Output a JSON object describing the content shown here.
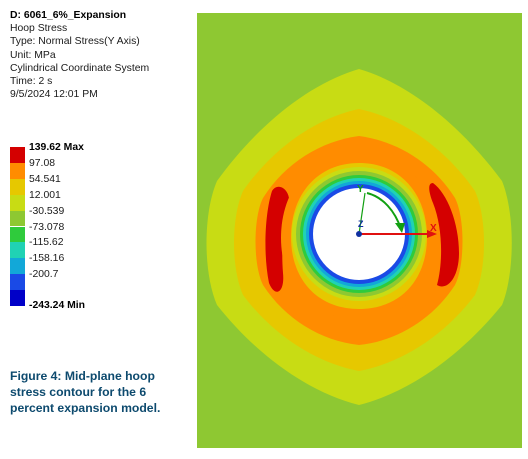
{
  "result_info": {
    "title": "D: 6061_6%_Expansion",
    "lines": [
      "Hoop Stress",
      "Type: Normal Stress(Y Axis)",
      "Unit: MPa",
      "Cylindrical Coordinate System",
      "Time: 2 s",
      "9/5/2024 12:01 PM"
    ]
  },
  "legend": {
    "max_label": "139.62 Max",
    "min_label": "-243.24 Min",
    "values": [
      "97.08",
      "54.541",
      "12.001",
      "-30.539",
      "-73.078",
      "-115.62",
      "-158.16",
      "-200.7"
    ],
    "colors": [
      "#d40000",
      "#ff8c00",
      "#e6c800",
      "#c8dc14",
      "#8ec832",
      "#2fcb3c",
      "#20d2b4",
      "#12a8d8",
      "#1a4ae6",
      "#0000c8"
    ]
  },
  "caption": [
    "Figure 4: Mid-plane hoop",
    "stress contour for the 6",
    "percent expansion model."
  ],
  "axes": {
    "x_label": "X",
    "y_label": "Y",
    "z_label": "Z",
    "x_color": "#e01010",
    "y_color": "#12a012",
    "z_color": "#1030a0"
  }
}
